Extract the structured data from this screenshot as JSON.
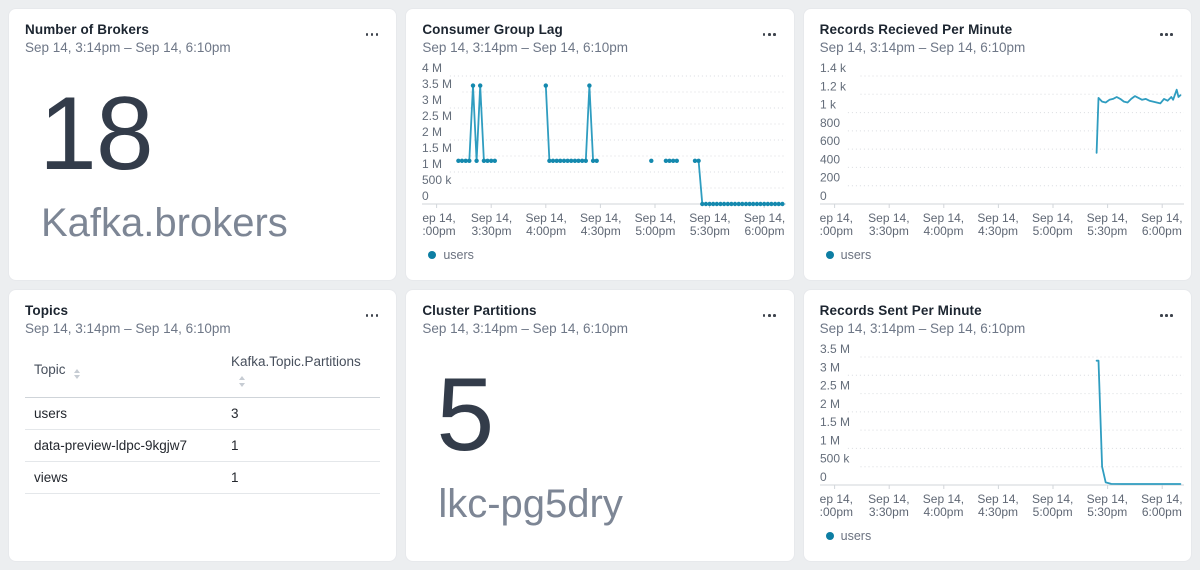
{
  "theme": {
    "page_bg": "#eceef0",
    "card_bg": "#ffffff",
    "card_border": "#e7e9ec",
    "title_color": "#1c2530",
    "subtitle_color": "#6e7787",
    "stat_value_color": "#333c4a",
    "stat_label_color": "#7d8695",
    "axis_label_color": "#646d7a",
    "gridline_color": "#d9dce0",
    "axis_line_color": "#d2d6da",
    "series_color": "#2f9dc0",
    "marker_color": "#1489ae",
    "legend_dot_color": "#0d7ea3",
    "legend_text_color": "#6b7280"
  },
  "cards": [
    {
      "title": "Number of Brokers",
      "time_range": "Sep 14, 3:14pm – Sep 14, 6:10pm",
      "type": "stat",
      "menu_icon": "ellipsis-icon",
      "stat": {
        "value": "18",
        "label": "Kafka.brokers"
      }
    },
    {
      "title": "Consumer Group Lag",
      "time_range": "Sep 14, 3:14pm – Sep 14, 6:10pm",
      "type": "chart",
      "menu_icon": "ellipsis-icon",
      "chart_index": 0
    },
    {
      "title": "Records Recieved Per Minute",
      "time_range": "Sep 14, 3:14pm – Sep 14, 6:10pm",
      "type": "chart",
      "menu_icon": "ellipsis-icon",
      "chart_index": 1
    },
    {
      "title": "Topics",
      "time_range": "Sep 14, 3:14pm – Sep 14, 6:10pm",
      "type": "table",
      "menu_icon": "ellipsis-icon",
      "table": {
        "columns": [
          "Topic",
          "Kafka.Topic.Partitions"
        ],
        "sortable": true,
        "rows": [
          [
            "users",
            "3"
          ],
          [
            "data-preview-ldpc-9kgjw7",
            "1"
          ],
          [
            "views",
            "1"
          ]
        ]
      }
    },
    {
      "title": "Cluster Partitions",
      "time_range": "Sep 14, 3:14pm – Sep 14, 6:10pm",
      "type": "stat",
      "menu_icon": "ellipsis-icon",
      "stat": {
        "value": "5",
        "label": "lkc-pg5dry"
      }
    },
    {
      "title": "Records Sent Per Minute",
      "time_range": "Sep 14, 3:14pm – Sep 14, 6:10pm",
      "type": "chart",
      "menu_icon": "ellipsis-icon",
      "chart_index": 2
    }
  ],
  "chart_data": [
    {
      "title": "Consumer Group Lag",
      "type": "line",
      "markers": true,
      "grid": "dotted-horizontal",
      "legend": [
        "users"
      ],
      "legend_position": "bottom-left",
      "ylim": [
        0,
        4000000
      ],
      "y_ticks": {
        "labels": [
          "4 M",
          "3.5 M",
          "3 M",
          "2.5 M",
          "2 M",
          "1.5 M",
          "1 M",
          "500 k",
          "0"
        ],
        "values": [
          4000000,
          3500000,
          3000000,
          2500000,
          2000000,
          1500000,
          1000000,
          500000,
          0
        ]
      },
      "x_ticks": {
        "labels": [
          [
            "ep 14,",
            ":00pm"
          ],
          [
            "Sep 14,",
            "3:30pm"
          ],
          [
            "Sep 14,",
            "4:00pm"
          ],
          [
            "Sep 14,",
            "4:30pm"
          ],
          [
            "Sep 14,",
            "5:00pm"
          ],
          [
            "Sep 14,",
            "5:30pm"
          ],
          [
            "Sep 14,",
            "6:00pm"
          ]
        ],
        "minutes": [
          0,
          30,
          60,
          90,
          120,
          150,
          180
        ]
      },
      "x_range_minutes": [
        -8,
        192
      ],
      "series": [
        {
          "name": "users",
          "points": [
            [
              12,
              1350000
            ],
            [
              14,
              1350000
            ],
            [
              16,
              1350000
            ],
            [
              18,
              1350000
            ],
            [
              20,
              3700000
            ],
            [
              22,
              1350000
            ],
            [
              24,
              3700000
            ],
            [
              26,
              1350000
            ],
            [
              28,
              1350000
            ],
            [
              30,
              1350000
            ],
            [
              32,
              1350000
            ],
            null,
            [
              60,
              3700000
            ],
            [
              62,
              1350000
            ],
            [
              64,
              1350000
            ],
            [
              66,
              1350000
            ],
            [
              68,
              1350000
            ],
            [
              70,
              1350000
            ],
            [
              72,
              1350000
            ],
            [
              74,
              1350000
            ],
            [
              76,
              1350000
            ],
            [
              78,
              1350000
            ],
            [
              80,
              1350000
            ],
            [
              82,
              1350000
            ],
            [
              84,
              3700000
            ],
            [
              86,
              1350000
            ],
            [
              88,
              1350000
            ],
            null,
            [
              118,
              1350000
            ],
            null,
            [
              126,
              1350000
            ],
            [
              128,
              1350000
            ],
            [
              130,
              1350000
            ],
            [
              132,
              1350000
            ],
            null,
            [
              142,
              1350000
            ],
            [
              144,
              1350000
            ],
            [
              146,
              0
            ],
            [
              148,
              0
            ],
            [
              150,
              0
            ],
            [
              152,
              0
            ],
            [
              154,
              0
            ],
            [
              156,
              0
            ],
            [
              158,
              0
            ],
            [
              160,
              0
            ],
            [
              162,
              0
            ],
            [
              164,
              0
            ],
            [
              166,
              0
            ],
            [
              168,
              0
            ],
            [
              170,
              0
            ],
            [
              172,
              0
            ],
            [
              174,
              0
            ],
            [
              176,
              0
            ],
            [
              178,
              0
            ],
            [
              180,
              0
            ],
            [
              182,
              0
            ],
            [
              184,
              0
            ],
            [
              186,
              0
            ],
            [
              188,
              0
            ],
            [
              190,
              0
            ]
          ]
        }
      ]
    },
    {
      "title": "Records Recieved Per Minute",
      "type": "line",
      "markers": false,
      "grid": "dotted-horizontal",
      "legend": [
        "users"
      ],
      "legend_position": "bottom-left",
      "ylim": [
        0,
        1400
      ],
      "y_ticks": {
        "labels": [
          "1.4 k",
          "1.2 k",
          "1 k",
          "800",
          "600",
          "400",
          "200",
          "0"
        ],
        "values": [
          1400,
          1200,
          1000,
          800,
          600,
          400,
          200,
          0
        ]
      },
      "x_ticks": {
        "labels": [
          [
            "ep 14,",
            ":00pm"
          ],
          [
            "Sep 14,",
            "3:30pm"
          ],
          [
            "Sep 14,",
            "4:00pm"
          ],
          [
            "Sep 14,",
            "4:30pm"
          ],
          [
            "Sep 14,",
            "5:00pm"
          ],
          [
            "Sep 14,",
            "5:30pm"
          ],
          [
            "Sep 14,",
            "6:00pm"
          ]
        ],
        "minutes": [
          0,
          30,
          60,
          90,
          120,
          150,
          180
        ]
      },
      "x_range_minutes": [
        -8,
        192
      ],
      "series": [
        {
          "name": "users",
          "points": [
            [
              144,
              560
            ],
            [
              145,
              1160
            ],
            [
              147,
              1120
            ],
            [
              149,
              1110
            ],
            [
              151,
              1140
            ],
            [
              153,
              1150
            ],
            [
              155,
              1170
            ],
            [
              157,
              1150
            ],
            [
              159,
              1120
            ],
            [
              161,
              1110
            ],
            [
              163,
              1150
            ],
            [
              165,
              1180
            ],
            [
              167,
              1160
            ],
            [
              169,
              1140
            ],
            [
              171,
              1150
            ],
            [
              173,
              1130
            ],
            [
              175,
              1120
            ],
            [
              177,
              1110
            ],
            [
              179,
              1100
            ],
            [
              181,
              1150
            ],
            [
              183,
              1130
            ],
            [
              185,
              1170
            ],
            [
              186,
              1140
            ],
            [
              188,
              1250
            ],
            [
              189,
              1170
            ],
            [
              190,
              1190
            ]
          ]
        }
      ]
    },
    {
      "title": "Records Sent Per Minute",
      "type": "line",
      "markers": false,
      "grid": "dotted-horizontal",
      "legend": [
        "users"
      ],
      "legend_position": "bottom-left",
      "ylim": [
        0,
        3500000
      ],
      "y_ticks": {
        "labels": [
          "3.5 M",
          "3 M",
          "2.5 M",
          "2 M",
          "1.5 M",
          "1 M",
          "500 k",
          "0"
        ],
        "values": [
          3500000,
          3000000,
          2500000,
          2000000,
          1500000,
          1000000,
          500000,
          0
        ]
      },
      "x_ticks": {
        "labels": [
          [
            "ep 14,",
            ":00pm"
          ],
          [
            "Sep 14,",
            "3:30pm"
          ],
          [
            "Sep 14,",
            "4:00pm"
          ],
          [
            "Sep 14,",
            "4:30pm"
          ],
          [
            "Sep 14,",
            "5:00pm"
          ],
          [
            "Sep 14,",
            "5:30pm"
          ],
          [
            "Sep 14,",
            "6:00pm"
          ]
        ],
        "minutes": [
          0,
          30,
          60,
          90,
          120,
          150,
          180
        ]
      },
      "x_range_minutes": [
        -8,
        192
      ],
      "series": [
        {
          "name": "users",
          "points": [
            [
              144,
              3400000
            ],
            [
              145,
              3400000
            ],
            [
              147,
              500000
            ],
            [
              149,
              70000
            ],
            [
              152,
              30000
            ],
            [
              158,
              28000
            ],
            [
              165,
              28000
            ],
            [
              172,
              28000
            ],
            [
              180,
              28000
            ],
            [
              190,
              28000
            ]
          ]
        }
      ]
    }
  ]
}
